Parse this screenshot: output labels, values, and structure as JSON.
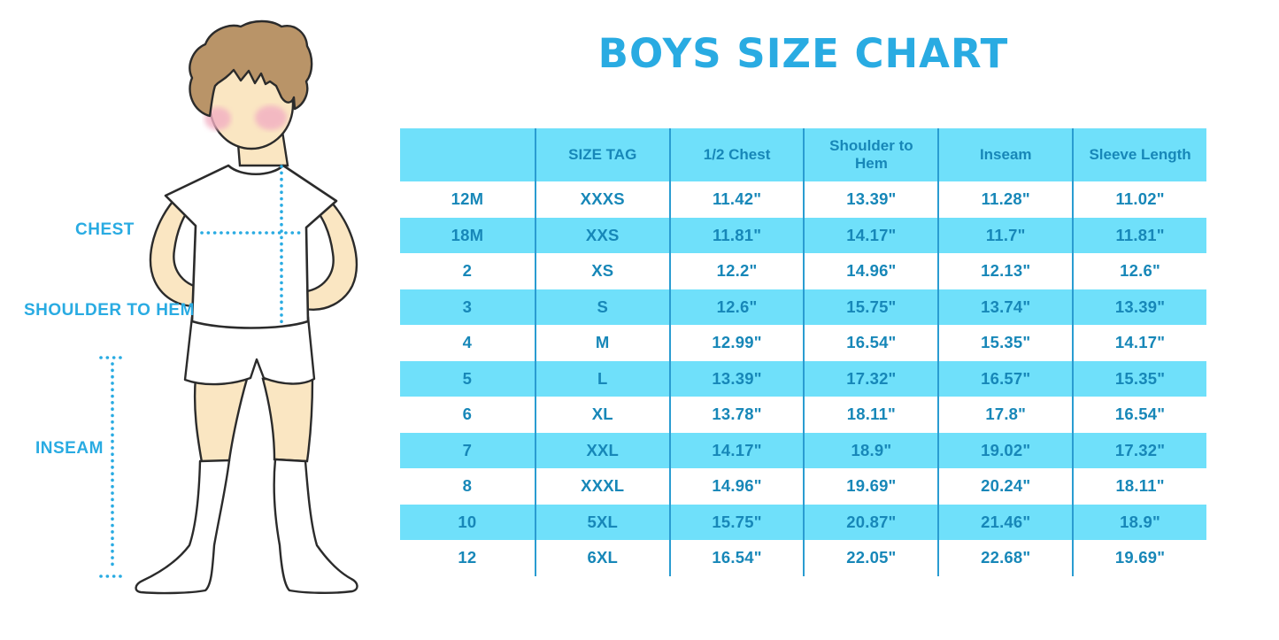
{
  "title": "BOYS SIZE CHART",
  "figure": {
    "description": "boy-in-tshirt-and-shorts-illustration",
    "labels": {
      "chest": "CHEST",
      "shoulder_to_hem": "SHOULDER TO HEM",
      "inseam": "INSEAM"
    }
  },
  "colors": {
    "accent_blue": "#29ABE2",
    "table_fill_cyan": "#6FE0FA",
    "table_text_blue": "#1787B8",
    "table_divider_blue": "#2A9CD1",
    "skin": "#FAE6C2",
    "hair": "#B99468",
    "blush": "#F2AFC3"
  },
  "chart_data": {
    "type": "table",
    "title": "BOYS SIZE CHART",
    "columns": [
      "",
      "SIZE TAG",
      "1/2 Chest",
      "Shoulder to Hem",
      "Inseam",
      "Sleeve Length"
    ],
    "rows": [
      [
        "12M",
        "XXXS",
        "11.42\"",
        "13.39\"",
        "11.28\"",
        "11.02\""
      ],
      [
        "18M",
        "XXS",
        "11.81\"",
        "14.17\"",
        "11.7\"",
        "11.81\""
      ],
      [
        "2",
        "XS",
        "12.2\"",
        "14.96\"",
        "12.13\"",
        "12.6\""
      ],
      [
        "3",
        "S",
        "12.6\"",
        "15.75\"",
        "13.74\"",
        "13.39\""
      ],
      [
        "4",
        "M",
        "12.99\"",
        "16.54\"",
        "15.35\"",
        "14.17\""
      ],
      [
        "5",
        "L",
        "13.39\"",
        "17.32\"",
        "16.57\"",
        "15.35\""
      ],
      [
        "6",
        "XL",
        "13.78\"",
        "18.11\"",
        "17.8\"",
        "16.54\""
      ],
      [
        "7",
        "XXL",
        "14.17\"",
        "18.9\"",
        "19.02\"",
        "17.32\""
      ],
      [
        "8",
        "XXXL",
        "14.96\"",
        "19.69\"",
        "20.24\"",
        "18.11\""
      ],
      [
        "10",
        "5XL",
        "15.75\"",
        "20.87\"",
        "21.46\"",
        "18.9\""
      ],
      [
        "12",
        "6XL",
        "16.54\"",
        "22.05\"",
        "22.68\"",
        "19.69\""
      ]
    ],
    "striped_row_indices": [
      1,
      3,
      5,
      7,
      9
    ],
    "legend_position": "none",
    "grid": "column-dividers-only"
  }
}
